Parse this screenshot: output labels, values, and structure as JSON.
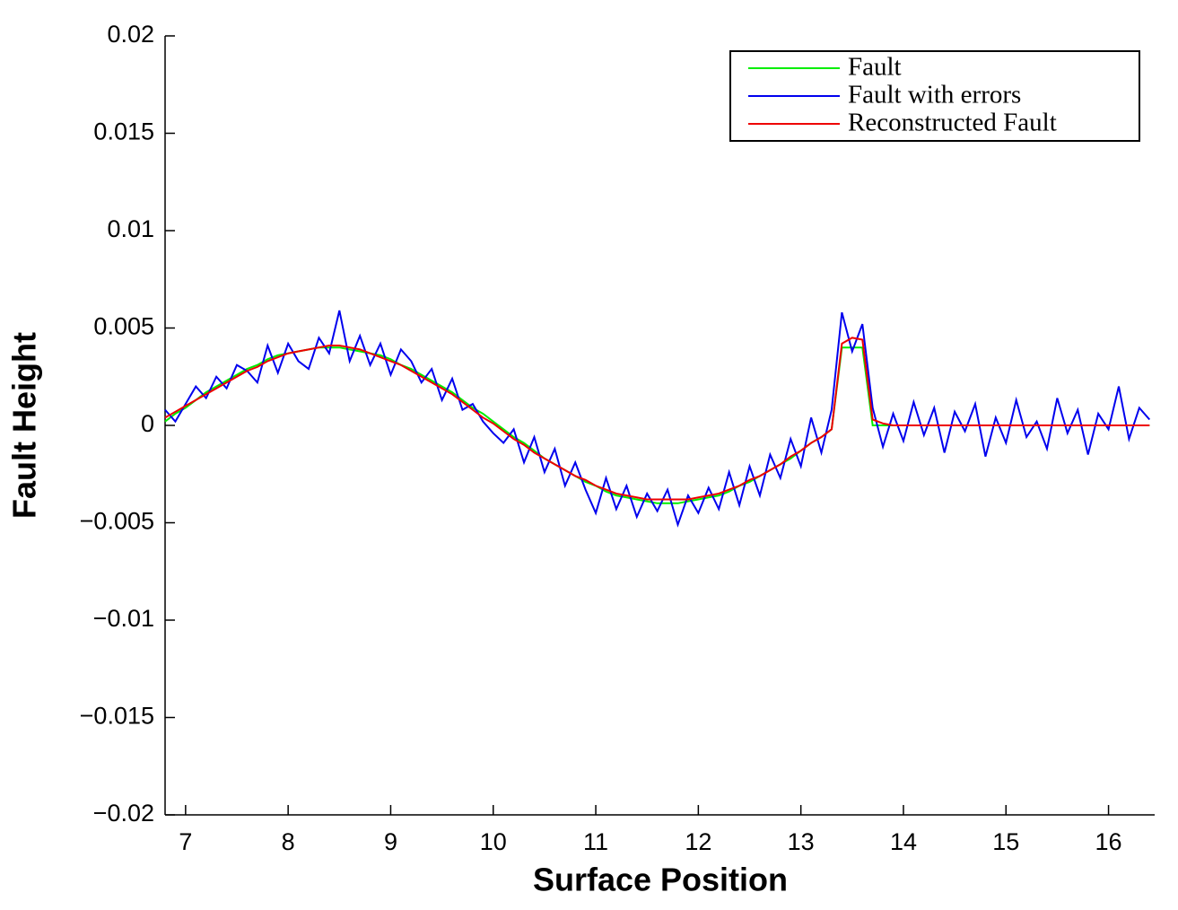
{
  "chart_data": {
    "type": "line",
    "xlabel": "Surface Position",
    "ylabel": "Fault Height",
    "xlim": [
      6.8,
      16.45
    ],
    "ylim": [
      -0.02,
      0.02
    ],
    "xticks": [
      7,
      8,
      9,
      10,
      11,
      12,
      13,
      14,
      15,
      16
    ],
    "yticks": [
      0.02,
      0.015,
      0.01,
      0.005,
      0,
      {
        "value": -0.005,
        "label": "−0.005"
      },
      {
        "value": -0.01,
        "label": "−0.01"
      },
      {
        "value": -0.015,
        "label": "−0.015"
      },
      {
        "value": -0.02,
        "label": "−0.02"
      }
    ],
    "legend": "upper right",
    "x": [
      6.8,
      6.9,
      7.0,
      7.1,
      7.2,
      7.3,
      7.4,
      7.5,
      7.6,
      7.7,
      7.8,
      7.9,
      8.0,
      8.1,
      8.2,
      8.3,
      8.4,
      8.5,
      8.6,
      8.7,
      8.8,
      8.9,
      9.0,
      9.1,
      9.2,
      9.3,
      9.4,
      9.5,
      9.6,
      9.7,
      9.8,
      9.9,
      10.0,
      10.1,
      10.2,
      10.3,
      10.4,
      10.5,
      10.6,
      10.7,
      10.8,
      10.9,
      11.0,
      11.1,
      11.2,
      11.3,
      11.4,
      11.5,
      11.6,
      11.7,
      11.8,
      11.9,
      12.0,
      12.1,
      12.2,
      12.3,
      12.4,
      12.5,
      12.6,
      12.7,
      12.8,
      12.9,
      13.0,
      13.1,
      13.2,
      13.3,
      13.4,
      13.5,
      13.6,
      13.7,
      13.8,
      13.9,
      14.0,
      14.1,
      14.2,
      14.3,
      14.4,
      14.5,
      14.6,
      14.7,
      14.8,
      14.9,
      15.0,
      15.1,
      15.2,
      15.3,
      15.4,
      15.5,
      15.6,
      15.7,
      15.8,
      15.9,
      16.0,
      16.1,
      16.2,
      16.3,
      16.4
    ],
    "series": [
      {
        "name": "Fault",
        "color": "#00ee00",
        "values": [
          0.0002,
          0.0006,
          0.0009,
          0.0013,
          0.0017,
          0.002,
          0.0023,
          0.0026,
          0.0029,
          0.0031,
          0.0034,
          0.0036,
          0.0037,
          0.0038,
          0.0039,
          0.004,
          0.004,
          0.004,
          0.0039,
          0.0038,
          0.0037,
          0.0036,
          0.0034,
          0.0031,
          0.0029,
          0.0026,
          0.0023,
          0.002,
          0.0017,
          0.0013,
          0.0009,
          0.0006,
          0.0002,
          -0.0002,
          -0.0006,
          -0.0009,
          -0.0013,
          -0.0017,
          -0.002,
          -0.0023,
          -0.0026,
          -0.0029,
          -0.0031,
          -0.0034,
          -0.0036,
          -0.0037,
          -0.0038,
          -0.0039,
          -0.004,
          -0.004,
          -0.004,
          -0.0039,
          -0.0038,
          -0.0037,
          -0.0036,
          -0.0034,
          -0.0031,
          -0.0029,
          -0.0026,
          -0.0023,
          -0.002,
          -0.0017,
          -0.0013,
          -0.0009,
          -0.0006,
          -0.0002,
          0.004,
          0.004,
          0.004,
          0,
          0,
          0,
          0,
          0,
          0,
          0,
          0,
          0,
          0,
          0,
          0,
          0,
          0,
          0,
          0,
          0,
          0,
          0,
          0,
          0,
          0,
          0,
          0,
          0,
          0,
          0,
          0
        ]
      },
      {
        "name": "Fault with errors",
        "color": "#0000ee",
        "values": [
          0.0008,
          0.0002,
          0.0011,
          0.002,
          0.0014,
          0.0025,
          0.0019,
          0.0031,
          0.0028,
          0.0022,
          0.0041,
          0.0027,
          0.0042,
          0.0033,
          0.0029,
          0.0045,
          0.0037,
          0.0059,
          0.0033,
          0.0046,
          0.0031,
          0.0042,
          0.0026,
          0.0039,
          0.0033,
          0.0022,
          0.0029,
          0.0013,
          0.0024,
          0.0008,
          0.0011,
          0.0002,
          -0.0004,
          -0.0009,
          -0.0002,
          -0.0019,
          -0.0006,
          -0.0024,
          -0.0012,
          -0.0031,
          -0.0019,
          -0.0033,
          -0.0045,
          -0.0027,
          -0.0043,
          -0.0031,
          -0.0047,
          -0.0035,
          -0.0044,
          -0.0033,
          -0.0051,
          -0.0036,
          -0.0045,
          -0.0032,
          -0.0043,
          -0.0024,
          -0.0041,
          -0.0021,
          -0.0036,
          -0.0015,
          -0.0027,
          -0.0007,
          -0.0021,
          0.0004,
          -0.0014,
          0.0008,
          0.0058,
          0.0038,
          0.0052,
          0.0009,
          -0.0011,
          0.0006,
          -0.0008,
          0.0012,
          -0.0005,
          0.0009,
          -0.0014,
          0.0007,
          -0.0003,
          0.0011,
          -0.0016,
          0.0004,
          -0.0009,
          0.0013,
          -0.0006,
          0.0002,
          -0.0012,
          0.0014,
          -0.0004,
          0.0008,
          -0.0015,
          0.0006,
          -0.0002,
          0.002,
          -0.0007,
          0.0009,
          0.0003
        ]
      },
      {
        "name": "Reconstructed Fault",
        "color": "#ee0000",
        "values": [
          0.0004,
          0.0007,
          0.001,
          0.0013,
          0.0016,
          0.0019,
          0.0022,
          0.0025,
          0.0028,
          0.003,
          0.0033,
          0.0035,
          0.0037,
          0.0038,
          0.0039,
          0.004,
          0.0041,
          0.0041,
          0.004,
          0.0039,
          0.0037,
          0.0035,
          0.0033,
          0.0031,
          0.0028,
          0.0025,
          0.0022,
          0.0019,
          0.0016,
          0.0012,
          0.0008,
          0.0004,
          0.0001,
          -0.0003,
          -0.0007,
          -0.001,
          -0.0014,
          -0.0017,
          -0.002,
          -0.0023,
          -0.0026,
          -0.0028,
          -0.0031,
          -0.0033,
          -0.0035,
          -0.0036,
          -0.0037,
          -0.0038,
          -0.0038,
          -0.0038,
          -0.0038,
          -0.0038,
          -0.0037,
          -0.0036,
          -0.0035,
          -0.0033,
          -0.0031,
          -0.0028,
          -0.0026,
          -0.0023,
          -0.002,
          -0.0016,
          -0.0013,
          -0.0009,
          -0.0006,
          -0.0002,
          0.0042,
          0.0045,
          0.0044,
          0.0003,
          0.0001,
          0,
          0,
          0,
          0,
          0,
          0,
          0,
          0,
          0,
          0,
          0,
          0,
          0,
          0,
          0,
          0,
          0,
          0,
          0,
          0,
          0,
          0,
          0,
          0,
          0,
          0
        ]
      }
    ]
  }
}
